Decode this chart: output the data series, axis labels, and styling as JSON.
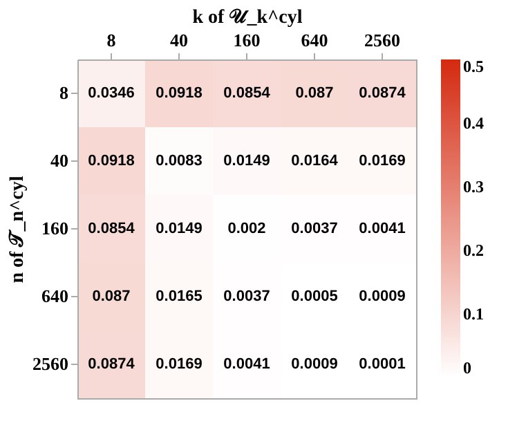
{
  "chart_data": {
    "type": "heatmap",
    "xlabel": "k of 𝒰_k^cyl",
    "ylabel": "n of 𝒯_n^cyl",
    "categories": [
      "8",
      "40",
      "160",
      "640",
      "2560"
    ],
    "y_categories": [
      "8",
      "40",
      "160",
      "640",
      "2560"
    ],
    "cells": [
      [
        0.0346,
        0.0918,
        0.0854,
        0.087,
        0.0874
      ],
      [
        0.0918,
        0.0083,
        0.0149,
        0.0164,
        0.0169
      ],
      [
        0.0854,
        0.0149,
        0.002,
        0.0037,
        0.0041
      ],
      [
        0.087,
        0.0165,
        0.0037,
        0.0005,
        0.0009
      ],
      [
        0.0874,
        0.0169,
        0.0041,
        0.0009,
        0.0001
      ]
    ],
    "data_labels": true,
    "clim": [
      0,
      0.5
    ],
    "cticks": [
      0,
      0.1,
      0.2,
      0.3,
      0.4,
      0.5
    ],
    "colors": [
      "#ffffff",
      "#d42a10"
    ],
    "grid": false
  }
}
